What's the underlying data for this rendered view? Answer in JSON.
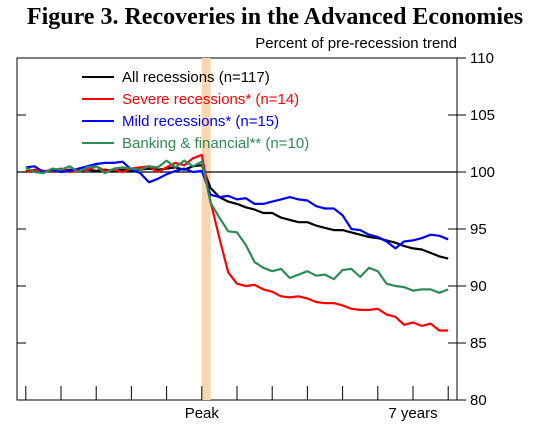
{
  "chart_data": {
    "type": "line",
    "title": "Figure 3. Recoveries in the Advanced Economies",
    "ylabel": "Percent of pre-recession trend",
    "ylim": [
      80,
      110
    ],
    "yticks": [
      80,
      85,
      90,
      95,
      100,
      105,
      110
    ],
    "x": [
      -20,
      -19,
      -18,
      -17,
      -16,
      -15,
      -14,
      -13,
      -12,
      -11,
      -10,
      -9,
      -8,
      -7,
      -6,
      -5,
      -4,
      -3,
      -2,
      -1,
      0,
      1,
      2,
      3,
      4,
      5,
      6,
      7,
      8,
      9,
      10,
      11,
      12,
      13,
      14,
      15,
      16,
      17,
      18,
      19,
      20,
      21,
      22,
      23,
      24,
      25,
      26,
      27,
      28
    ],
    "xlim": [
      -21,
      29
    ],
    "x_tick_labels": [
      {
        "x": 0,
        "label": "Peak"
      },
      {
        "x": 24,
        "label": "7 years"
      }
    ],
    "x_minor_ticks": [
      -20,
      -16,
      -12,
      -8,
      -4,
      0,
      4,
      8,
      12,
      16,
      20,
      24,
      28
    ],
    "reference_line": {
      "y": 100
    },
    "shaded_band": {
      "x_start": 0,
      "x_end": 1,
      "color": "#f9d6b0"
    },
    "series": [
      {
        "name": "All recessions (n=117)",
        "color": "#000000",
        "values": [
          100.1,
          100.1,
          100.0,
          100.2,
          100.1,
          100.2,
          100.1,
          100.2,
          100.1,
          100.2,
          100.1,
          100.2,
          100.1,
          100.2,
          100.3,
          100.2,
          100.3,
          100.4,
          100.2,
          100.5,
          100.6,
          98.6,
          97.8,
          97.4,
          97.2,
          96.9,
          96.7,
          96.4,
          96.4,
          96.0,
          95.8,
          95.6,
          95.6,
          95.3,
          95.1,
          94.9,
          94.9,
          94.7,
          94.5,
          94.3,
          94.2,
          94.0,
          93.8,
          93.5,
          93.3,
          93.2,
          92.9,
          92.6,
          92.4
        ]
      },
      {
        "name": "Severe recessions* (n=14)",
        "color": "#ff0000",
        "values": [
          100.0,
          100.2,
          100.1,
          100.1,
          100.3,
          100.0,
          100.1,
          100.2,
          100.5,
          100.1,
          100.2,
          100.0,
          100.3,
          100.4,
          100.5,
          100.0,
          100.4,
          100.8,
          100.6,
          101.2,
          101.5,
          97.4,
          94.2,
          91.2,
          90.2,
          90.0,
          90.1,
          89.7,
          89.5,
          89.1,
          89.0,
          89.1,
          88.9,
          88.6,
          88.5,
          88.5,
          88.3,
          88.0,
          87.9,
          87.9,
          88.0,
          87.5,
          87.3,
          86.6,
          86.8,
          86.5,
          86.7,
          86.1,
          86.1
        ]
      },
      {
        "name": "Mild recessions* (n=15)",
        "color": "#0000ff",
        "values": [
          100.4,
          100.5,
          100.0,
          100.2,
          100.0,
          100.1,
          100.3,
          100.5,
          100.7,
          100.8,
          100.8,
          100.9,
          100.2,
          99.9,
          99.1,
          99.4,
          99.8,
          100.1,
          100.3,
          100.0,
          100.1,
          98.0,
          97.8,
          97.9,
          97.6,
          97.7,
          97.2,
          97.2,
          97.4,
          97.6,
          97.8,
          97.6,
          97.5,
          97.0,
          96.8,
          96.8,
          96.2,
          95.0,
          94.9,
          94.5,
          94.3,
          93.9,
          93.3,
          93.9,
          94.0,
          94.2,
          94.5,
          94.4,
          94.1
        ]
      },
      {
        "name": "Banking & financial** (n=10)",
        "color": "#2e8b57",
        "values": [
          100.4,
          100.0,
          99.9,
          100.3,
          100.2,
          100.5,
          100.0,
          100.4,
          100.5,
          99.9,
          100.3,
          100.4,
          100.3,
          100.2,
          100.5,
          100.4,
          101.0,
          100.4,
          101.0,
          100.5,
          100.9,
          97.3,
          96.0,
          94.8,
          94.7,
          93.6,
          92.1,
          91.6,
          91.3,
          91.5,
          90.7,
          91.0,
          91.3,
          90.9,
          91.0,
          90.6,
          91.4,
          91.5,
          90.8,
          91.6,
          91.3,
          90.2,
          90.0,
          89.9,
          89.6,
          89.7,
          89.7,
          89.4,
          89.7
        ]
      }
    ],
    "legend": "top-left"
  }
}
